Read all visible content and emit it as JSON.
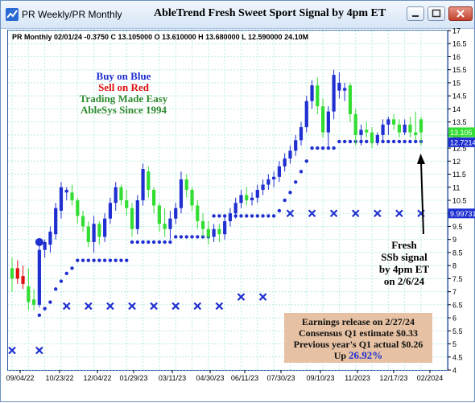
{
  "window": {
    "title": "PR Weekly/PR Monthly",
    "chart_title": "AbleTrend Fresh Sweet Sport Signal by 4pm ET",
    "controls": [
      "minimize",
      "maximize",
      "close"
    ]
  },
  "info_line": "PR  Monthly 02/01/24 -0.3750 C 13.105000 O 13.610000 H 13.680000 L 12.590000 24.10M",
  "brand": {
    "line1": "Buy on Blue",
    "line2": "Sell on Red",
    "line3": "Trading Made Easy",
    "line4": "AbleSys Since 1994"
  },
  "annotation": {
    "lines": [
      "Fresh",
      "SSb signal",
      "by 4pm ET",
      "on 2/6/24"
    ]
  },
  "earnings": {
    "line1": "Earnings release on 2/27/24",
    "line2": "Consensus Q1 estimate $0.33",
    "line3": "Previous year's Q1 actual $0.26",
    "line4_prefix": "Up ",
    "line4_value": "26.92%"
  },
  "colors": {
    "up_bar": "#1f2fd0",
    "down_bar": "#33dd33",
    "sell_bar": "#e01010",
    "stop_marker": "#1f2fd0",
    "grid": "#b8ece4",
    "axis": "#2f56a8",
    "earnings_bg": "#e6c1a3"
  },
  "chart_data": {
    "type": "candlestick",
    "x_tick_labels": [
      "09/04/22",
      "10/23/22",
      "12/04/22",
      "01/29/23",
      "03/11/23",
      "04/30/23",
      "06/11/23",
      "07/30/23",
      "09/10/23",
      "11/2023",
      "12/17/23",
      "02/2024"
    ],
    "y_ticks": [
      4,
      4.5,
      5,
      5.5,
      6,
      6.5,
      7,
      7.5,
      8,
      8.5,
      9,
      9.5,
      10,
      10.5,
      11,
      11.5,
      12,
      12.5,
      13,
      13.5,
      14,
      14.5,
      15,
      15.5,
      16,
      16.5,
      17
    ],
    "y_tick_labels": [
      "4",
      "4.5",
      "5",
      "5.5",
      "6",
      "6.5",
      "7",
      "7.5",
      "8",
      "8.5",
      "9",
      "9.5",
      "10",
      "10.5",
      "11",
      "11.5",
      "12",
      "12.5",
      "13",
      "13.5",
      "14",
      "14.5",
      "15",
      "15.5",
      "16",
      "16.5",
      "17"
    ],
    "ylim": [
      4,
      17
    ],
    "price_labels": [
      {
        "text": "13.105",
        "value": 13.105,
        "color": "#33dd33",
        "text_color": "#ffffff"
      },
      {
        "text": "12.7214",
        "value": 12.7214,
        "color": "#1f2fd0",
        "text_color": "#ffffff"
      },
      {
        "text": "9.99731",
        "value": 9.99731,
        "color": "#1f2fd0",
        "text_color": "#ffffff"
      }
    ],
    "bars": [
      {
        "o": 7.5,
        "h": 8.3,
        "l": 7.0,
        "c": 7.9,
        "col": "green"
      },
      {
        "o": 7.9,
        "h": 8.2,
        "l": 7.3,
        "c": 7.5,
        "col": "red"
      },
      {
        "o": 7.6,
        "h": 8.0,
        "l": 7.1,
        "c": 7.3,
        "col": "red"
      },
      {
        "o": 7.2,
        "h": 7.9,
        "l": 6.3,
        "c": 6.6,
        "col": "green"
      },
      {
        "o": 6.7,
        "h": 7.1,
        "l": 6.3,
        "c": 6.5,
        "col": "green"
      },
      {
        "o": 6.5,
        "h": 8.8,
        "l": 6.4,
        "c": 8.6,
        "col": "blue"
      },
      {
        "o": 8.6,
        "h": 9.0,
        "l": 8.3,
        "c": 8.9,
        "col": "blue"
      },
      {
        "o": 8.8,
        "h": 9.5,
        "l": 8.5,
        "c": 9.3,
        "col": "blue"
      },
      {
        "o": 9.2,
        "h": 10.4,
        "l": 9.0,
        "c": 10.2,
        "col": "blue"
      },
      {
        "o": 10.1,
        "h": 11.2,
        "l": 9.8,
        "c": 11.0,
        "col": "blue"
      },
      {
        "o": 10.9,
        "h": 11.0,
        "l": 10.5,
        "c": 10.8,
        "col": "blue"
      },
      {
        "o": 10.8,
        "h": 11.1,
        "l": 10.3,
        "c": 10.5,
        "col": "green"
      },
      {
        "o": 10.5,
        "h": 10.6,
        "l": 9.6,
        "c": 9.9,
        "col": "green"
      },
      {
        "o": 9.9,
        "h": 10.1,
        "l": 9.3,
        "c": 9.5,
        "col": "green"
      },
      {
        "o": 9.5,
        "h": 9.7,
        "l": 8.7,
        "c": 8.9,
        "col": "green"
      },
      {
        "o": 8.9,
        "h": 9.9,
        "l": 8.5,
        "c": 9.6,
        "col": "blue"
      },
      {
        "o": 9.6,
        "h": 9.7,
        "l": 8.8,
        "c": 9.1,
        "col": "green"
      },
      {
        "o": 9.1,
        "h": 10.0,
        "l": 8.9,
        "c": 9.8,
        "col": "blue"
      },
      {
        "o": 9.8,
        "h": 10.6,
        "l": 9.6,
        "c": 10.4,
        "col": "blue"
      },
      {
        "o": 10.4,
        "h": 11.2,
        "l": 10.1,
        "c": 11.0,
        "col": "blue"
      },
      {
        "o": 11.0,
        "h": 11.1,
        "l": 10.3,
        "c": 10.5,
        "col": "green"
      },
      {
        "o": 10.5,
        "h": 10.9,
        "l": 9.9,
        "c": 10.2,
        "col": "green"
      },
      {
        "o": 10.2,
        "h": 10.4,
        "l": 9.1,
        "c": 9.4,
        "col": "green"
      },
      {
        "o": 9.4,
        "h": 10.7,
        "l": 9.2,
        "c": 10.5,
        "col": "blue"
      },
      {
        "o": 10.5,
        "h": 11.9,
        "l": 10.3,
        "c": 11.7,
        "col": "blue"
      },
      {
        "o": 11.6,
        "h": 11.8,
        "l": 10.6,
        "c": 10.9,
        "col": "green"
      },
      {
        "o": 10.9,
        "h": 11.0,
        "l": 10.0,
        "c": 10.3,
        "col": "green"
      },
      {
        "o": 10.3,
        "h": 10.4,
        "l": 9.3,
        "c": 9.6,
        "col": "green"
      },
      {
        "o": 9.6,
        "h": 10.2,
        "l": 9.1,
        "c": 9.4,
        "col": "green"
      },
      {
        "o": 9.4,
        "h": 10.1,
        "l": 9.0,
        "c": 9.8,
        "col": "blue"
      },
      {
        "o": 9.8,
        "h": 10.4,
        "l": 9.6,
        "c": 10.2,
        "col": "blue"
      },
      {
        "o": 10.2,
        "h": 11.6,
        "l": 10.0,
        "c": 11.3,
        "col": "blue"
      },
      {
        "o": 11.3,
        "h": 11.5,
        "l": 10.6,
        "c": 10.9,
        "col": "green"
      },
      {
        "o": 10.9,
        "h": 11.0,
        "l": 10.1,
        "c": 10.3,
        "col": "green"
      },
      {
        "o": 10.3,
        "h": 10.5,
        "l": 9.4,
        "c": 9.7,
        "col": "green"
      },
      {
        "o": 9.7,
        "h": 10.0,
        "l": 9.1,
        "c": 9.4,
        "col": "green"
      },
      {
        "o": 9.4,
        "h": 9.7,
        "l": 8.8,
        "c": 9.1,
        "col": "green"
      },
      {
        "o": 9.1,
        "h": 9.6,
        "l": 8.9,
        "c": 9.4,
        "col": "blue"
      },
      {
        "o": 9.4,
        "h": 9.6,
        "l": 8.9,
        "c": 9.2,
        "col": "green"
      },
      {
        "o": 9.2,
        "h": 9.9,
        "l": 9.0,
        "c": 9.7,
        "col": "blue"
      },
      {
        "o": 9.7,
        "h": 10.2,
        "l": 9.5,
        "c": 10.0,
        "col": "blue"
      },
      {
        "o": 10.0,
        "h": 10.6,
        "l": 9.8,
        "c": 10.4,
        "col": "blue"
      },
      {
        "o": 10.4,
        "h": 10.9,
        "l": 10.2,
        "c": 10.7,
        "col": "blue"
      },
      {
        "o": 10.7,
        "h": 11.0,
        "l": 10.3,
        "c": 10.5,
        "col": "green"
      },
      {
        "o": 10.5,
        "h": 10.8,
        "l": 10.3,
        "c": 10.6,
        "col": "blue"
      },
      {
        "o": 10.6,
        "h": 11.1,
        "l": 10.4,
        "c": 10.9,
        "col": "blue"
      },
      {
        "o": 10.9,
        "h": 11.3,
        "l": 10.7,
        "c": 11.1,
        "col": "blue"
      },
      {
        "o": 11.1,
        "h": 11.5,
        "l": 10.9,
        "c": 11.3,
        "col": "blue"
      },
      {
        "o": 11.3,
        "h": 11.6,
        "l": 11.0,
        "c": 11.4,
        "col": "blue"
      },
      {
        "o": 11.4,
        "h": 12.0,
        "l": 11.2,
        "c": 11.8,
        "col": "blue"
      },
      {
        "o": 11.8,
        "h": 12.3,
        "l": 11.6,
        "c": 12.1,
        "col": "blue"
      },
      {
        "o": 12.1,
        "h": 12.6,
        "l": 11.9,
        "c": 12.4,
        "col": "blue"
      },
      {
        "o": 12.4,
        "h": 13.0,
        "l": 12.2,
        "c": 12.8,
        "col": "blue"
      },
      {
        "o": 12.8,
        "h": 13.5,
        "l": 12.6,
        "c": 13.3,
        "col": "blue"
      },
      {
        "o": 13.3,
        "h": 14.5,
        "l": 13.1,
        "c": 14.3,
        "col": "blue"
      },
      {
        "o": 14.3,
        "h": 15.1,
        "l": 14.0,
        "c": 14.9,
        "col": "blue"
      },
      {
        "o": 14.9,
        "h": 15.2,
        "l": 13.8,
        "c": 14.1,
        "col": "green"
      },
      {
        "o": 14.1,
        "h": 14.4,
        "l": 12.9,
        "c": 13.1,
        "col": "green"
      },
      {
        "o": 13.1,
        "h": 14.1,
        "l": 12.5,
        "c": 13.9,
        "col": "blue"
      },
      {
        "o": 13.9,
        "h": 15.5,
        "l": 13.6,
        "c": 15.3,
        "col": "blue"
      },
      {
        "o": 15.0,
        "h": 15.4,
        "l": 14.4,
        "c": 14.7,
        "col": "blue"
      },
      {
        "o": 14.7,
        "h": 15.0,
        "l": 14.3,
        "c": 14.8,
        "col": "blue"
      },
      {
        "o": 14.9,
        "h": 15.0,
        "l": 13.5,
        "c": 13.8,
        "col": "green"
      },
      {
        "o": 13.8,
        "h": 14.0,
        "l": 12.6,
        "c": 13.0,
        "col": "green"
      },
      {
        "o": 13.0,
        "h": 13.4,
        "l": 12.6,
        "c": 13.2,
        "col": "blue"
      },
      {
        "o": 13.2,
        "h": 13.5,
        "l": 12.9,
        "c": 13.1,
        "col": "green"
      },
      {
        "o": 13.1,
        "h": 13.3,
        "l": 12.5,
        "c": 12.7,
        "col": "green"
      },
      {
        "o": 12.7,
        "h": 13.1,
        "l": 12.6,
        "c": 13.0,
        "col": "blue"
      },
      {
        "o": 13.0,
        "h": 13.6,
        "l": 12.8,
        "c": 13.4,
        "col": "blue"
      },
      {
        "o": 13.4,
        "h": 13.7,
        "l": 13.0,
        "c": 13.6,
        "col": "blue"
      },
      {
        "o": 13.6,
        "h": 13.8,
        "l": 13.2,
        "c": 13.4,
        "col": "green"
      },
      {
        "o": 13.4,
        "h": 13.6,
        "l": 12.9,
        "c": 13.1,
        "col": "green"
      },
      {
        "o": 13.1,
        "h": 13.6,
        "l": 13.0,
        "c": 13.4,
        "col": "blue"
      },
      {
        "o": 13.4,
        "h": 13.7,
        "l": 12.9,
        "c": 13.1,
        "col": "green"
      },
      {
        "o": 13.1,
        "h": 13.9,
        "l": 12.8,
        "c": 13.0,
        "col": "green"
      },
      {
        "o": 13.6,
        "h": 13.7,
        "l": 12.6,
        "c": 13.1,
        "col": "green"
      }
    ],
    "stop_dots": [
      {
        "from": 5,
        "to": 5,
        "y": 6.1
      },
      {
        "from": 6,
        "to": 6,
        "y": 6.35
      },
      {
        "from": 7,
        "to": 7,
        "y": 6.6
      },
      {
        "from": 8,
        "to": 8,
        "y": 7.1
      },
      {
        "from": 9,
        "to": 9,
        "y": 7.4
      },
      {
        "from": 10,
        "to": 10,
        "y": 7.7
      },
      {
        "from": 11,
        "to": 11,
        "y": 7.9
      },
      {
        "from": 12,
        "to": 21,
        "y": 8.2
      },
      {
        "from": 22,
        "to": 29,
        "y": 8.9
      },
      {
        "from": 30,
        "to": 36,
        "y": 9.1
      },
      {
        "from": 37,
        "to": 48,
        "y": 9.9
      },
      {
        "from": 49,
        "to": 49,
        "y": 10.1
      },
      {
        "from": 50,
        "to": 50,
        "y": 10.5
      },
      {
        "from": 51,
        "to": 51,
        "y": 10.8
      },
      {
        "from": 52,
        "to": 52,
        "y": 11.2
      },
      {
        "from": 53,
        "to": 53,
        "y": 11.6
      },
      {
        "from": 54,
        "to": 54,
        "y": 12.0
      },
      {
        "from": 55,
        "to": 59,
        "y": 12.5
      },
      {
        "from": 60,
        "to": 75,
        "y": 12.75
      }
    ],
    "stop_x": [
      {
        "i": 0,
        "y": 4.75
      },
      {
        "i": 5,
        "y": 4.75
      },
      {
        "i": 10,
        "y": 6.45
      },
      {
        "i": 14,
        "y": 6.45
      },
      {
        "i": 18,
        "y": 6.45
      },
      {
        "i": 22,
        "y": 6.45
      },
      {
        "i": 26,
        "y": 6.45
      },
      {
        "i": 30,
        "y": 6.45
      },
      {
        "i": 34,
        "y": 6.45
      },
      {
        "i": 38,
        "y": 6.45
      },
      {
        "i": 42,
        "y": 6.8
      },
      {
        "i": 46,
        "y": 6.8
      },
      {
        "i": 51,
        "y": 10.0
      },
      {
        "i": 55,
        "y": 10.0
      },
      {
        "i": 59,
        "y": 10.0
      },
      {
        "i": 63,
        "y": 10.0
      },
      {
        "i": 67,
        "y": 10.0
      },
      {
        "i": 71,
        "y": 10.0
      },
      {
        "i": 75,
        "y": 10.0
      }
    ],
    "signal_dot": {
      "i": 5,
      "y": 8.9
    }
  }
}
